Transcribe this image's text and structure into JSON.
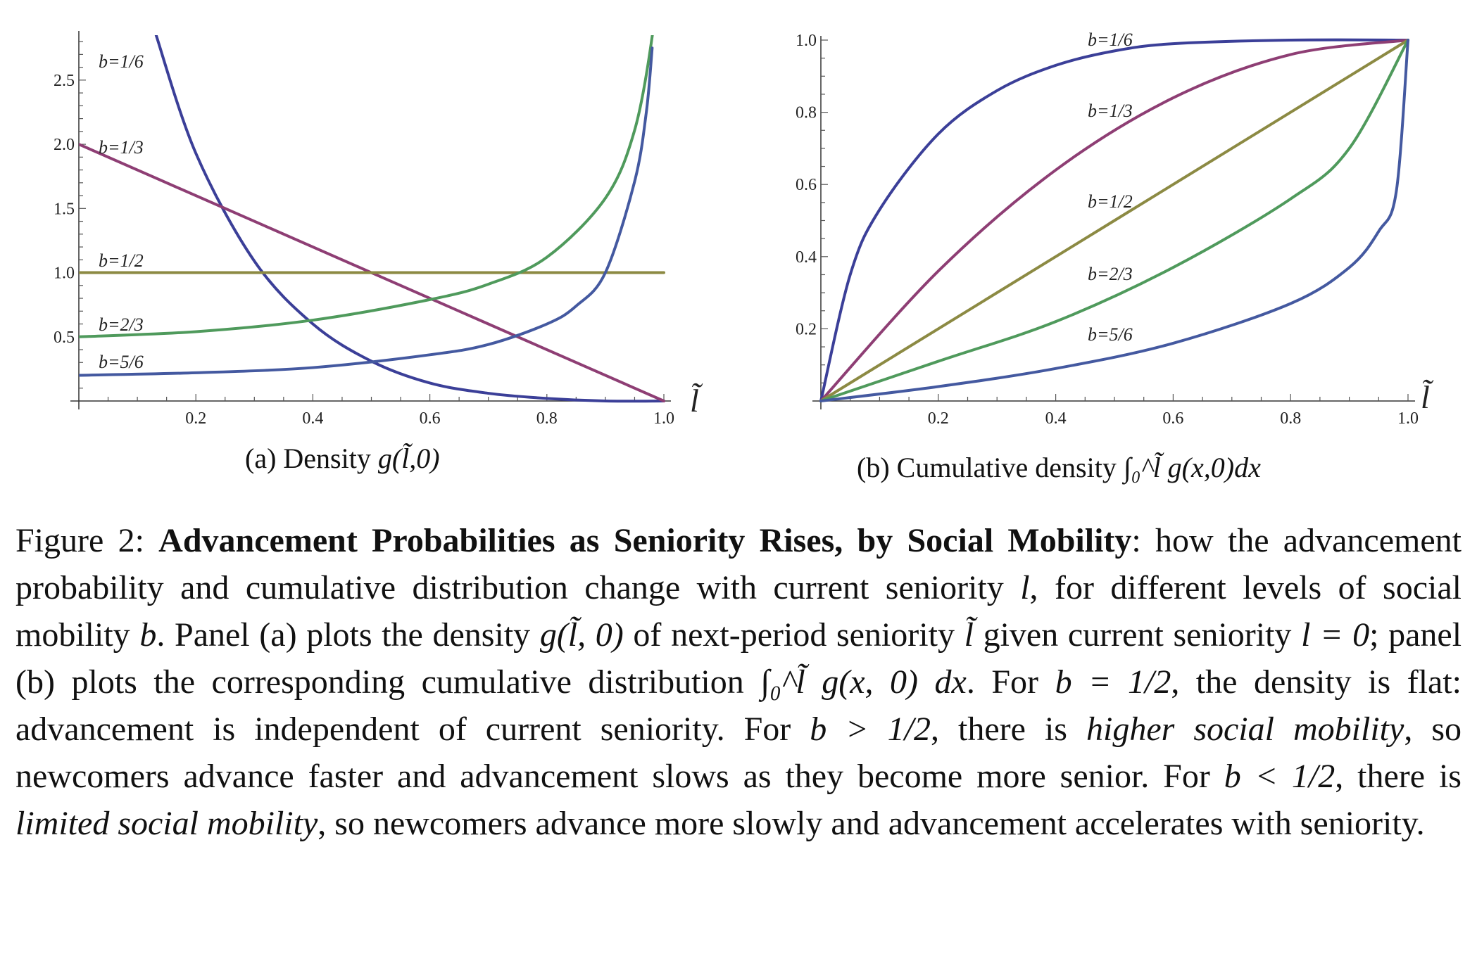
{
  "chart_data": [
    {
      "panel": "a",
      "type": "line",
      "x_axis_label": "l̃",
      "caption_prefix": "(a) Density ",
      "caption_math": "g(l̃,0)",
      "xlim": [
        0,
        1.0
      ],
      "ylim": [
        0,
        2.85
      ],
      "xticks": [
        0.2,
        0.4,
        0.6,
        0.8,
        1.0
      ],
      "xtick_labels": [
        "0.2",
        "0.4",
        "0.6",
        "0.8",
        "1.0"
      ],
      "yticks": [
        0.5,
        1.0,
        1.5,
        2.0,
        2.5
      ],
      "ytick_labels": [
        "0.5",
        "1.0",
        "1.5",
        "2.0",
        "2.5"
      ],
      "series": [
        {
          "name": "b=1/6",
          "color": "#3b3f98",
          "x": [
            0.13,
            0.2,
            0.3,
            0.4,
            0.5,
            0.6,
            0.7,
            0.8,
            0.9,
            1.0
          ],
          "y": [
            2.88,
            1.93,
            1.09,
            0.6,
            0.31,
            0.14,
            0.06,
            0.02,
            0.0,
            0.0
          ]
        },
        {
          "name": "b=1/3",
          "color": "#8e3e74",
          "x": [
            0.0,
            0.5,
            1.0
          ],
          "y": [
            2.0,
            1.0,
            0.0
          ]
        },
        {
          "name": "b=1/2",
          "color": "#8c8a43",
          "x": [
            0.0,
            1.0
          ],
          "y": [
            1.0,
            1.0
          ]
        },
        {
          "name": "b=2/3",
          "color": "#4f9a5c",
          "x": [
            0.0,
            0.2,
            0.4,
            0.6,
            0.7,
            0.8,
            0.9,
            0.95,
            0.98,
            0.99
          ],
          "y": [
            0.5,
            0.54,
            0.63,
            0.79,
            0.91,
            1.12,
            1.58,
            2.11,
            2.84,
            3.4
          ]
        },
        {
          "name": "b=5/6",
          "color": "#4459a0",
          "x": [
            0.0,
            0.2,
            0.4,
            0.6,
            0.7,
            0.8,
            0.85,
            0.9,
            0.95,
            0.97,
            0.98
          ],
          "y": [
            0.2,
            0.22,
            0.26,
            0.36,
            0.44,
            0.6,
            0.74,
            1.0,
            1.71,
            2.25,
            2.75
          ]
        }
      ],
      "curve_labels": [
        "b=1/6",
        "b=1/3",
        "b=1/2",
        "b=2/3",
        "b=5/6"
      ]
    },
    {
      "panel": "b",
      "type": "line",
      "x_axis_label": "l̃",
      "caption_prefix": "(b) Cumulative density ",
      "caption_math": "∫₀^l̃ g(x,0)dx",
      "xlim": [
        0,
        1.0
      ],
      "ylim": [
        0,
        1.0
      ],
      "xticks": [
        0.2,
        0.4,
        0.6,
        0.8,
        1.0
      ],
      "xtick_labels": [
        "0.2",
        "0.4",
        "0.6",
        "0.8",
        "1.0"
      ],
      "yticks": [
        0.2,
        0.4,
        0.6,
        0.8,
        1.0
      ],
      "ytick_labels": [
        "0.2",
        "0.4",
        "0.6",
        "0.8",
        "1.0"
      ],
      "series": [
        {
          "name": "b=1/6",
          "color": "#3b3f98",
          "x": [
            0.0,
            0.05,
            0.1,
            0.2,
            0.3,
            0.4,
            0.5,
            0.6,
            0.8,
            1.0
          ],
          "y": [
            0.0,
            0.35,
            0.53,
            0.74,
            0.86,
            0.93,
            0.97,
            0.99,
            1.0,
            1.0
          ]
        },
        {
          "name": "b=1/3",
          "color": "#8e3e74",
          "x": [
            0.0,
            0.2,
            0.4,
            0.6,
            0.8,
            1.0
          ],
          "y": [
            0.0,
            0.36,
            0.64,
            0.84,
            0.96,
            1.0
          ]
        },
        {
          "name": "b=1/2",
          "color": "#8c8a43",
          "x": [
            0.0,
            1.0
          ],
          "y": [
            0.0,
            1.0
          ]
        },
        {
          "name": "b=2/3",
          "color": "#4f9a5c",
          "x": [
            0.0,
            0.2,
            0.4,
            0.6,
            0.8,
            0.9,
            1.0
          ],
          "y": [
            0.0,
            0.11,
            0.22,
            0.37,
            0.56,
            0.7,
            1.0
          ]
        },
        {
          "name": "b=5/6",
          "color": "#4459a0",
          "x": [
            0.0,
            0.2,
            0.4,
            0.6,
            0.8,
            0.9,
            0.95,
            0.98,
            1.0
          ],
          "y": [
            0.0,
            0.04,
            0.09,
            0.16,
            0.27,
            0.37,
            0.47,
            0.58,
            1.0
          ]
        }
      ],
      "curve_labels": [
        "b=1/6",
        "b=1/3",
        "b=1/2",
        "b=2/3",
        "b=5/6"
      ]
    }
  ],
  "caption": {
    "figure_prefix": "Figure 2: ",
    "figure_title": "Advancement Probabilities as Seniority Rises, by Social Mobility",
    "text_1": ": how the advancement probability and cumulative distribution change with current seniority ",
    "var_l": "l",
    "text_2": ", for different levels of social mobility ",
    "var_b": "b",
    "text_3": ". Panel (a) plots the density ",
    "math_g": "g(l̃, 0)",
    "text_4": " of next-period seniority ",
    "var_lt": "l̃",
    "text_5": " given current seniority ",
    "math_l0": "l = 0",
    "text_6": "; panel (b) plots the corresponding cumulative distribution ",
    "math_int": "∫₀^l̃ g(x, 0) dx",
    "text_7": ". For ",
    "math_bhalf": "b = 1/2",
    "text_8": ", the density is flat: advancement is independent of current seniority. For ",
    "math_bgt": "b > 1/2",
    "text_9": ", there is ",
    "emph_high": "higher social mobility",
    "text_10": ", so newcomers advance faster and advancement slows as they become more senior. For ",
    "math_blt": "b < 1/2",
    "text_11": ", there is ",
    "emph_limited": "limited social mobility",
    "text_12": ", so newcomers advance more slowly and advancement accelerates with seniority."
  }
}
